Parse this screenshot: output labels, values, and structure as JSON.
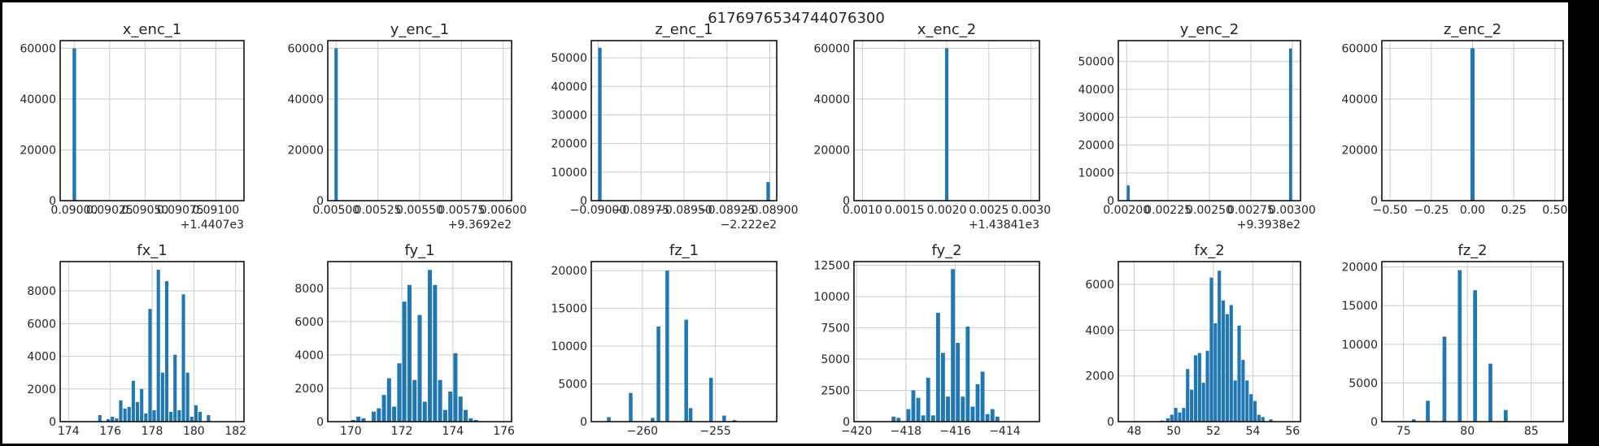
{
  "figure": {
    "suptitle": "6176976534744076300",
    "bar_color": "#1f77b4",
    "background": "#ffffff",
    "border_color": "#000000",
    "grid_color": "#cccccc"
  },
  "chart_data": [
    {
      "type": "bar",
      "title": "x_enc_1",
      "grid": true,
      "xlim": [
        0.0899,
        0.0912
      ],
      "ylim": [
        0,
        63000
      ],
      "xticks": [
        "0.09000",
        "0.09025",
        "0.09050",
        "0.09075",
        "0.09100"
      ],
      "xtick_values": [
        0.09,
        0.09025,
        0.0905,
        0.09075,
        0.091
      ],
      "xaxis_offset": "+1.4407e3",
      "yticks": [
        "0",
        "20000",
        "40000",
        "60000"
      ],
      "ytick_values": [
        0,
        20000,
        40000,
        60000
      ],
      "bars": [
        {
          "x": 0.09,
          "value": 60000
        }
      ],
      "bar_width": 2.5e-05
    },
    {
      "type": "bar",
      "title": "y_enc_1",
      "grid": true,
      "xlim": [
        0.00495,
        0.00605
      ],
      "ylim": [
        0,
        63000
      ],
      "xticks": [
        "0.00500",
        "0.00525",
        "0.00550",
        "0.00575",
        "0.00600"
      ],
      "xtick_values": [
        0.005,
        0.00525,
        0.0055,
        0.00575,
        0.006
      ],
      "xaxis_offset": "+9.3692e2",
      "yticks": [
        "0",
        "20000",
        "40000",
        "60000"
      ],
      "ytick_values": [
        0,
        20000,
        40000,
        60000
      ],
      "bars": [
        {
          "x": 0.005,
          "value": 60000
        }
      ],
      "bar_width": 2e-05
    },
    {
      "type": "bar",
      "title": "z_enc_1",
      "grid": true,
      "xlim": [
        -0.09004,
        -0.08896
      ],
      "ylim": [
        0,
        56000
      ],
      "xticks": [
        "−0.09000",
        "−0.08975",
        "−0.08950",
        "−0.08925",
        "−0.08900"
      ],
      "xtick_values": [
        -0.09,
        -0.08975,
        -0.0895,
        -0.08925,
        -0.089
      ],
      "xaxis_offset": "−2.222e2",
      "yticks": [
        "0",
        "10000",
        "20000",
        "30000",
        "40000",
        "50000"
      ],
      "ytick_values": [
        0,
        10000,
        20000,
        30000,
        40000,
        50000
      ],
      "bars": [
        {
          "x": -0.08999,
          "value": 53500
        },
        {
          "x": -0.08901,
          "value": 6500
        }
      ],
      "bar_width": 2e-05
    },
    {
      "type": "bar",
      "title": "x_enc_2",
      "grid": true,
      "xlim": [
        0.0009,
        0.0031
      ],
      "ylim": [
        0,
        63000
      ],
      "xticks": [
        "0.0010",
        "0.0015",
        "0.0020",
        "0.0025",
        "0.0030"
      ],
      "xtick_values": [
        0.001,
        0.0015,
        0.002,
        0.0025,
        0.003
      ],
      "xaxis_offset": "+1.43841e3",
      "yticks": [
        "0",
        "20000",
        "40000",
        "60000"
      ],
      "ytick_values": [
        0,
        20000,
        40000,
        60000
      ],
      "bars": [
        {
          "x": 0.002,
          "value": 60000
        }
      ],
      "bar_width": 4e-05
    },
    {
      "type": "bar",
      "title": "y_enc_2",
      "grid": true,
      "xlim": [
        0.00195,
        0.00305
      ],
      "ylim": [
        0,
        57500
      ],
      "xticks": [
        "0.00200",
        "0.00225",
        "0.00250",
        "0.00275",
        "0.00300"
      ],
      "xtick_values": [
        0.002,
        0.00225,
        0.0025,
        0.00275,
        0.003
      ],
      "xaxis_offset": "+9.3938e2",
      "yticks": [
        "0",
        "10000",
        "20000",
        "30000",
        "40000",
        "50000"
      ],
      "ytick_values": [
        0,
        10000,
        20000,
        30000,
        40000,
        50000
      ],
      "bars": [
        {
          "x": 0.00201,
          "value": 5500
        },
        {
          "x": 0.00299,
          "value": 54700
        }
      ],
      "bar_width": 1.8e-05
    },
    {
      "type": "bar",
      "title": "z_enc_2",
      "grid": true,
      "xlim": [
        -0.55,
        0.55
      ],
      "ylim": [
        0,
        63000
      ],
      "xticks": [
        "−0.50",
        "−0.25",
        "0.00",
        "0.25",
        "0.50"
      ],
      "xtick_values": [
        -0.5,
        -0.25,
        0,
        0.25,
        0.5
      ],
      "yticks": [
        "0",
        "20000",
        "40000",
        "60000"
      ],
      "ytick_values": [
        0,
        20000,
        40000,
        60000
      ],
      "bars": [
        {
          "x": 0,
          "value": 60000
        }
      ],
      "bar_width": 0.025
    },
    {
      "type": "bar",
      "title": "fx_1",
      "grid": true,
      "xlim": [
        173.6,
        182.4
      ],
      "ylim": [
        0,
        9800
      ],
      "xticks": [
        "174",
        "176",
        "178",
        "180",
        "182"
      ],
      "xtick_values": [
        174,
        176,
        178,
        180,
        182
      ],
      "yticks": [
        "0",
        "2000",
        "4000",
        "6000",
        "8000"
      ],
      "ytick_values": [
        0,
        2000,
        4000,
        6000,
        8000
      ],
      "bars": [
        {
          "x": 175.5,
          "value": 400
        },
        {
          "x": 175.9,
          "value": 150
        },
        {
          "x": 176.1,
          "value": 300
        },
        {
          "x": 176.3,
          "value": 200
        },
        {
          "x": 176.5,
          "value": 1300
        },
        {
          "x": 176.7,
          "value": 800
        },
        {
          "x": 176.9,
          "value": 900
        },
        {
          "x": 177.1,
          "value": 2500
        },
        {
          "x": 177.3,
          "value": 1200
        },
        {
          "x": 177.5,
          "value": 2000
        },
        {
          "x": 177.7,
          "value": 500
        },
        {
          "x": 177.9,
          "value": 6900
        },
        {
          "x": 178.1,
          "value": 700
        },
        {
          "x": 178.3,
          "value": 9300
        },
        {
          "x": 178.5,
          "value": 3000
        },
        {
          "x": 178.7,
          "value": 8600
        },
        {
          "x": 178.9,
          "value": 600
        },
        {
          "x": 179.1,
          "value": 4100
        },
        {
          "x": 179.3,
          "value": 700
        },
        {
          "x": 179.5,
          "value": 7800
        },
        {
          "x": 179.7,
          "value": 3000
        },
        {
          "x": 179.9,
          "value": 300
        },
        {
          "x": 180.1,
          "value": 1000
        },
        {
          "x": 180.3,
          "value": 600
        },
        {
          "x": 180.7,
          "value": 400
        }
      ],
      "bar_width": 0.16
    },
    {
      "type": "bar",
      "title": "fy_1",
      "grid": true,
      "xlim": [
        169.1,
        176.3
      ],
      "ylim": [
        0,
        9600
      ],
      "xticks": [
        "170",
        "172",
        "174",
        "176"
      ],
      "xtick_values": [
        170,
        172,
        174,
        176
      ],
      "yticks": [
        "0",
        "2000",
        "4000",
        "6000",
        "8000"
      ],
      "ytick_values": [
        0,
        2000,
        4000,
        6000,
        8000
      ],
      "bars": [
        {
          "x": 170.1,
          "value": 100
        },
        {
          "x": 170.3,
          "value": 300
        },
        {
          "x": 170.5,
          "value": 200
        },
        {
          "x": 170.9,
          "value": 600
        },
        {
          "x": 171.1,
          "value": 800
        },
        {
          "x": 171.3,
          "value": 1600
        },
        {
          "x": 171.5,
          "value": 2600
        },
        {
          "x": 171.7,
          "value": 900
        },
        {
          "x": 171.9,
          "value": 3500
        },
        {
          "x": 172.1,
          "value": 7200
        },
        {
          "x": 172.3,
          "value": 8200
        },
        {
          "x": 172.5,
          "value": 2500
        },
        {
          "x": 172.7,
          "value": 6400
        },
        {
          "x": 172.9,
          "value": 1200
        },
        {
          "x": 173.1,
          "value": 9100
        },
        {
          "x": 173.3,
          "value": 8200
        },
        {
          "x": 173.5,
          "value": 2500
        },
        {
          "x": 173.7,
          "value": 700
        },
        {
          "x": 173.9,
          "value": 1800
        },
        {
          "x": 174.1,
          "value": 4100
        },
        {
          "x": 174.3,
          "value": 1500
        },
        {
          "x": 174.5,
          "value": 700
        },
        {
          "x": 174.7,
          "value": 200
        },
        {
          "x": 174.9,
          "value": 100
        }
      ],
      "bar_width": 0.16
    },
    {
      "type": "bar",
      "title": "fz_1",
      "grid": true,
      "xlim": [
        -263.5,
        -250.8
      ],
      "ylim": [
        0,
        21200
      ],
      "xticks": [
        "−260",
        "−255"
      ],
      "xtick_values": [
        -260,
        -255
      ],
      "yticks": [
        "0",
        "5000",
        "10000",
        "15000",
        "20000"
      ],
      "ytick_values": [
        0,
        5000,
        10000,
        15000,
        20000
      ],
      "bars": [
        {
          "x": -262.3,
          "value": 600
        },
        {
          "x": -260.8,
          "value": 3800
        },
        {
          "x": -259.3,
          "value": 500
        },
        {
          "x": -258.9,
          "value": 12600
        },
        {
          "x": -258.3,
          "value": 20000
        },
        {
          "x": -257.0,
          "value": 13500
        },
        {
          "x": -256.7,
          "value": 1800
        },
        {
          "x": -255.3,
          "value": 5800
        },
        {
          "x": -254.4,
          "value": 800
        },
        {
          "x": -253.7,
          "value": 200
        }
      ],
      "bar_width": 0.25
    },
    {
      "type": "bar",
      "title": "fy_2",
      "grid": true,
      "xlim": [
        -420.1,
        -412.6
      ],
      "ylim": [
        0,
        12800
      ],
      "xticks": [
        "−420",
        "−418",
        "−416",
        "−414"
      ],
      "xtick_values": [
        -420,
        -418,
        -416,
        -414
      ],
      "yticks": [
        "0",
        "2500",
        "5000",
        "7500",
        "10000",
        "12500"
      ],
      "ytick_values": [
        0,
        2500,
        5000,
        7500,
        10000,
        12500
      ],
      "bars": [
        {
          "x": -418.5,
          "value": 400
        },
        {
          "x": -418.3,
          "value": 300
        },
        {
          "x": -417.9,
          "value": 1000
        },
        {
          "x": -417.7,
          "value": 2500
        },
        {
          "x": -417.5,
          "value": 1900
        },
        {
          "x": -417.3,
          "value": 500
        },
        {
          "x": -417.1,
          "value": 3500
        },
        {
          "x": -416.9,
          "value": 500
        },
        {
          "x": -416.7,
          "value": 8700
        },
        {
          "x": -416.5,
          "value": 5500
        },
        {
          "x": -416.3,
          "value": 2000
        },
        {
          "x": -416.1,
          "value": 12200
        },
        {
          "x": -415.9,
          "value": 6300
        },
        {
          "x": -415.7,
          "value": 2000
        },
        {
          "x": -415.5,
          "value": 7600
        },
        {
          "x": -415.3,
          "value": 1200
        },
        {
          "x": -415.1,
          "value": 3000
        },
        {
          "x": -414.9,
          "value": 4000
        },
        {
          "x": -414.7,
          "value": 600
        },
        {
          "x": -414.5,
          "value": 1000
        },
        {
          "x": -414.3,
          "value": 400
        }
      ],
      "bar_width": 0.16
    },
    {
      "type": "bar",
      "title": "fx_2",
      "grid": true,
      "xlim": [
        47.2,
        56.4
      ],
      "ylim": [
        0,
        7000
      ],
      "xticks": [
        "48",
        "50",
        "52",
        "54",
        "56"
      ],
      "xtick_values": [
        48,
        50,
        52,
        54,
        56
      ],
      "yticks": [
        "0",
        "2000",
        "4000",
        "6000"
      ],
      "ytick_values": [
        0,
        2000,
        4000,
        6000
      ],
      "bars": [
        {
          "x": 49.4,
          "value": 50
        },
        {
          "x": 49.7,
          "value": 150
        },
        {
          "x": 49.9,
          "value": 300
        },
        {
          "x": 50.1,
          "value": 600
        },
        {
          "x": 50.3,
          "value": 400
        },
        {
          "x": 50.5,
          "value": 600
        },
        {
          "x": 50.7,
          "value": 2300
        },
        {
          "x": 50.9,
          "value": 1400
        },
        {
          "x": 51.1,
          "value": 2900
        },
        {
          "x": 51.3,
          "value": 3000
        },
        {
          "x": 51.5,
          "value": 1700
        },
        {
          "x": 51.7,
          "value": 3100
        },
        {
          "x": 51.9,
          "value": 6300
        },
        {
          "x": 52.1,
          "value": 4300
        },
        {
          "x": 52.3,
          "value": 6600
        },
        {
          "x": 52.5,
          "value": 5300
        },
        {
          "x": 52.7,
          "value": 4700
        },
        {
          "x": 52.9,
          "value": 5100
        },
        {
          "x": 53.1,
          "value": 1800
        },
        {
          "x": 53.3,
          "value": 4200
        },
        {
          "x": 53.5,
          "value": 2700
        },
        {
          "x": 53.7,
          "value": 1800
        },
        {
          "x": 53.9,
          "value": 1200
        },
        {
          "x": 54.1,
          "value": 900
        },
        {
          "x": 54.3,
          "value": 300
        },
        {
          "x": 54.5,
          "value": 200
        },
        {
          "x": 54.9,
          "value": 100
        }
      ],
      "bar_width": 0.17
    },
    {
      "type": "bar",
      "title": "fz_2",
      "grid": true,
      "xlim": [
        73.3,
        87.5
      ],
      "ylim": [
        0,
        20700
      ],
      "xticks": [
        "75",
        "80",
        "85"
      ],
      "xtick_values": [
        75,
        80,
        85
      ],
      "yticks": [
        "0",
        "5000",
        "10000",
        "15000",
        "20000"
      ],
      "ytick_values": [
        0,
        5000,
        10000,
        15000,
        20000
      ],
      "bars": [
        {
          "x": 75.8,
          "value": 300
        },
        {
          "x": 76.9,
          "value": 2700
        },
        {
          "x": 78.2,
          "value": 11000
        },
        {
          "x": 79.4,
          "value": 19600
        },
        {
          "x": 80.6,
          "value": 17000
        },
        {
          "x": 81.8,
          "value": 7500
        },
        {
          "x": 83.0,
          "value": 1500
        }
      ],
      "bar_width": 0.3
    }
  ]
}
